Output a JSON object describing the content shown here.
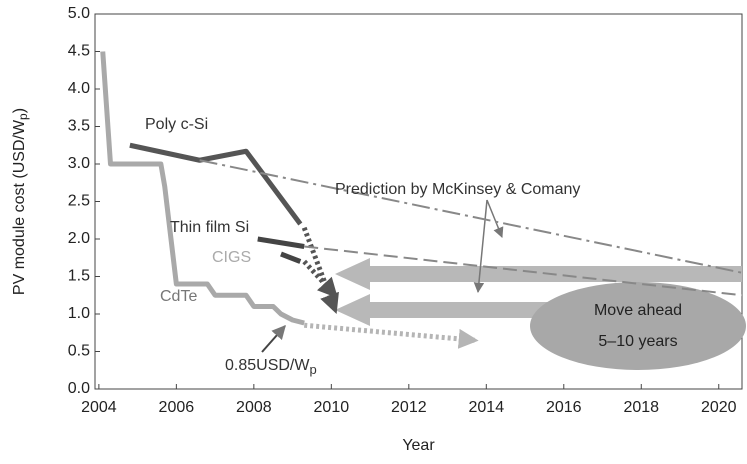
{
  "chart_data": {
    "type": "line",
    "x_label": "Year",
    "y_label": {
      "text": "PV module cost (USD/W",
      "sub": "p",
      "end": ")"
    },
    "xlim": [
      2003.9,
      2020.6
    ],
    "ylim": [
      0,
      5
    ],
    "xticks": [
      2004,
      2006,
      2008,
      2010,
      2012,
      2014,
      2016,
      2018,
      2020
    ],
    "yticks": [
      {
        "value": 0,
        "label": "0.0"
      },
      0.5,
      {
        "value": 1,
        "label": "1.0"
      },
      1.5,
      {
        "value": 2,
        "label": "2.0"
      },
      2.5,
      {
        "value": 3,
        "label": "3.0"
      },
      3.5,
      {
        "value": 4,
        "label": "4.0"
      },
      4.5,
      {
        "value": 5,
        "label": "5.0"
      }
    ],
    "series": [
      {
        "name": "CdTe",
        "color": "#a9a9a9",
        "style": "solid",
        "x": [
          2004.1,
          2004.3,
          2005.6,
          2005.7,
          2006.0,
          2006.8,
          2007.0,
          2007.8,
          2008.0,
          2008.5,
          2008.7,
          2009.0,
          2009.3
        ],
        "values": [
          4.5,
          3.0,
          3.0,
          2.7,
          1.4,
          1.4,
          1.25,
          1.25,
          1.1,
          1.1,
          1.0,
          0.92,
          0.88
        ]
      },
      {
        "color": "#b5b5b5",
        "style": "dotted",
        "x": [
          2009.3,
          2013.7
        ],
        "values": [
          0.85,
          0.65
        ]
      },
      {
        "name": "Poly c-Si",
        "color": "#555555",
        "style": "solid",
        "x": [
          2004.8,
          2006.6,
          2007.8,
          2009.2
        ],
        "values": [
          3.25,
          3.05,
          3.17,
          2.2
        ]
      },
      {
        "color": "#555555",
        "style": "dotted",
        "x": [
          2009.3,
          2010.1
        ],
        "values": [
          2.15,
          1.05
        ]
      },
      {
        "name": "Thin film Si",
        "color": "#444444",
        "style": "solid",
        "x": [
          2008.1,
          2009.3
        ],
        "values": [
          2.0,
          1.9
        ]
      },
      {
        "name": "CIGS",
        "color": "#444444",
        "style": "solid",
        "x": [
          2008.7,
          2009.2
        ],
        "values": [
          1.8,
          1.7
        ]
      },
      {
        "color": "#555555",
        "style": "dotted",
        "x": [
          2009.3,
          2010.1
        ],
        "values": [
          1.7,
          1.25
        ]
      },
      {
        "color": "#888888",
        "style": "dashdot",
        "x": [
          2006.6,
          2020.6
        ],
        "values": [
          3.05,
          1.55
        ]
      },
      {
        "color": "#888888",
        "style": "dashed",
        "x": [
          2009.3,
          2020.6
        ],
        "values": [
          1.9,
          1.25
        ]
      }
    ],
    "annotations": [
      {
        "text": "Poly c-Si"
      },
      {
        "text": "Thin film Si"
      },
      {
        "text": "CIGS"
      },
      {
        "text": "CdTe"
      },
      {
        "text": "Prediction by McKinsey & Comany"
      },
      {
        "text": "0.85USD/W",
        "sub": "p"
      },
      {
        "text": "Move ahead"
      },
      {
        "text": "5–10 years"
      }
    ]
  }
}
